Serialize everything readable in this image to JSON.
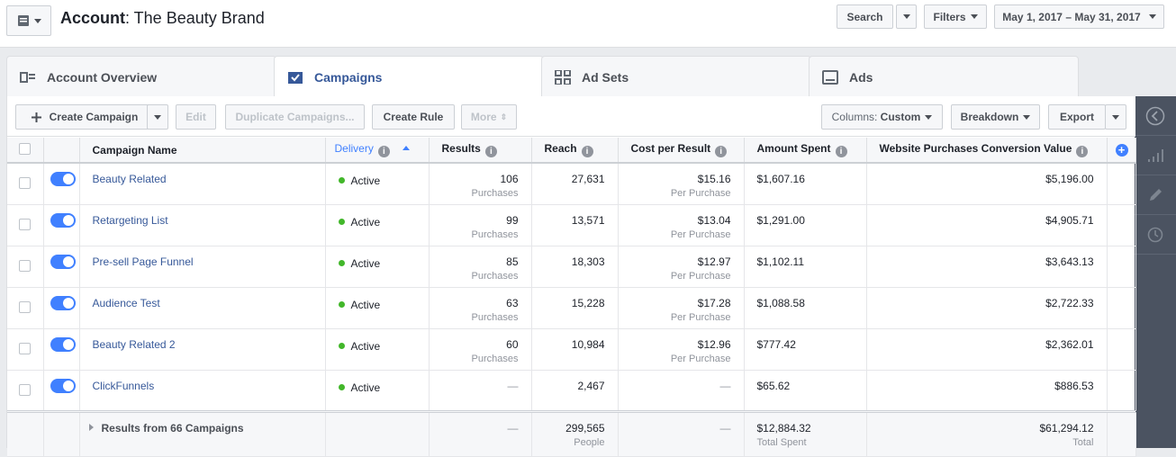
{
  "header": {
    "account_label": "Account",
    "account_name": ": The Beauty Brand",
    "search_label": "Search",
    "filters_label": "Filters",
    "date_range": "May 1, 2017 – May 31, 2017"
  },
  "tabs": [
    {
      "label": "Account Overview"
    },
    {
      "label": "Campaigns"
    },
    {
      "label": "Ad Sets"
    },
    {
      "label": "Ads"
    }
  ],
  "toolbar": {
    "create_campaign": "Create Campaign",
    "edit": "Edit",
    "duplicate": "Duplicate Campaigns...",
    "create_rule": "Create Rule",
    "more": "More",
    "columns_prefix": "Columns:",
    "columns_value": "Custom",
    "breakdown": "Breakdown",
    "export": "Export"
  },
  "columns": {
    "name": "Campaign Name",
    "delivery": "Delivery",
    "results": "Results",
    "reach": "Reach",
    "cost": "Cost per Result",
    "spent": "Amount Spent",
    "conv": "Website Purchases Conversion Value"
  },
  "rows": [
    {
      "name": "Beauty Related",
      "delivery": "Active",
      "results": "106",
      "results_sub": "Purchases",
      "reach": "27,631",
      "cost": "$15.16",
      "cost_sub": "Per Purchase",
      "spent": "$1,607.16",
      "conv": "$5,196.00"
    },
    {
      "name": "Retargeting List",
      "delivery": "Active",
      "results": "99",
      "results_sub": "Purchases",
      "reach": "13,571",
      "cost": "$13.04",
      "cost_sub": "Per Purchase",
      "spent": "$1,291.00",
      "conv": "$4,905.71"
    },
    {
      "name": "Pre-sell Page Funnel",
      "delivery": "Active",
      "results": "85",
      "results_sub": "Purchases",
      "reach": "18,303",
      "cost": "$12.97",
      "cost_sub": "Per Purchase",
      "spent": "$1,102.11",
      "conv": "$3,643.13"
    },
    {
      "name": "Audience Test",
      "delivery": "Active",
      "results": "63",
      "results_sub": "Purchases",
      "reach": "15,228",
      "cost": "$17.28",
      "cost_sub": "Per Purchase",
      "spent": "$1,088.58",
      "conv": "$2,722.33"
    },
    {
      "name": "Beauty Related 2",
      "delivery": "Active",
      "results": "60",
      "results_sub": "Purchases",
      "reach": "10,984",
      "cost": "$12.96",
      "cost_sub": "Per Purchase",
      "spent": "$777.42",
      "conv": "$2,362.01"
    },
    {
      "name": "ClickFunnels",
      "delivery": "Active",
      "results": "—",
      "results_sub": "",
      "reach": "2,467",
      "cost": "—",
      "cost_sub": "",
      "spent": "$65.62",
      "conv": "$886.53"
    }
  ],
  "totals": {
    "label": "Results from 66 Campaigns",
    "results": "—",
    "reach": "299,565",
    "reach_sub": "People",
    "cost": "—",
    "spent": "$12,884.32",
    "spent_sub": "Total Spent",
    "conv": "$61,294.12",
    "conv_sub": "Total"
  },
  "colors": {
    "link": "#365899",
    "toggle": "#4080ff",
    "active_dot": "#42b72a",
    "sidebar": "#4b5361"
  }
}
